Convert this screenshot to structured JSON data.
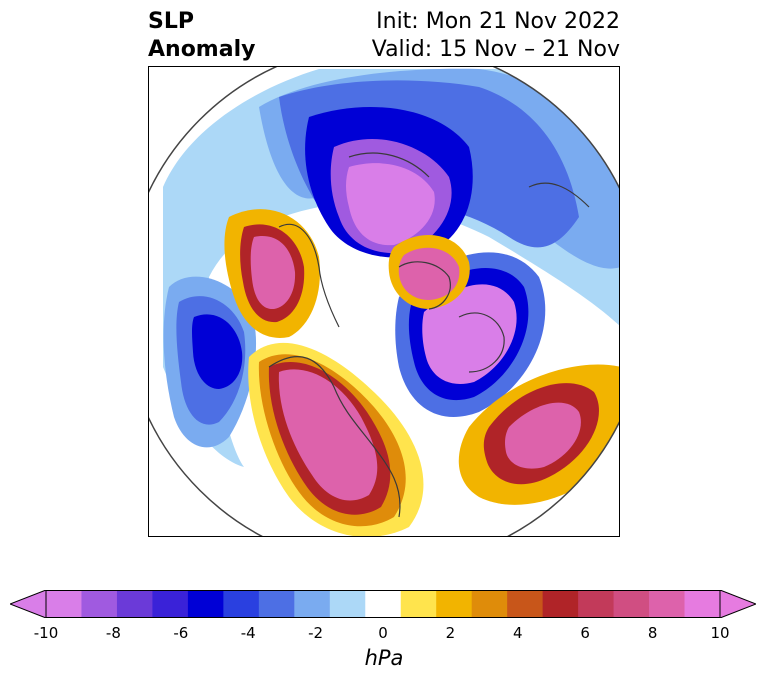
{
  "header": {
    "title_line1": "SLP",
    "title_line2": "Anomaly",
    "init": "Init: Mon 21 Nov 2022",
    "valid": "Valid: 15 Nov – 21 Nov"
  },
  "colorbar": {
    "unit": "hPa",
    "ticks": [
      "-10",
      "-8",
      "-6",
      "-4",
      "-2",
      "0",
      "2",
      "4",
      "6",
      "8",
      "10"
    ],
    "min": -10,
    "max": 10,
    "extend": "both",
    "colors": [
      "#d97ee8",
      "#a05ae0",
      "#6b3ad8",
      "#3a22d8",
      "#0000d6",
      "#2a40e0",
      "#4d6fe4",
      "#7aabf0",
      "#acd8f7",
      "#ffffff",
      "#ffe44d",
      "#f2b400",
      "#df8c0a",
      "#c8561a",
      "#b02428",
      "#c23a5a",
      "#d04e82",
      "#dd62ab",
      "#e67be0"
    ]
  },
  "map": {
    "projection": "north-polar-stereographic",
    "field": "sea-level-pressure-anomaly"
  }
}
